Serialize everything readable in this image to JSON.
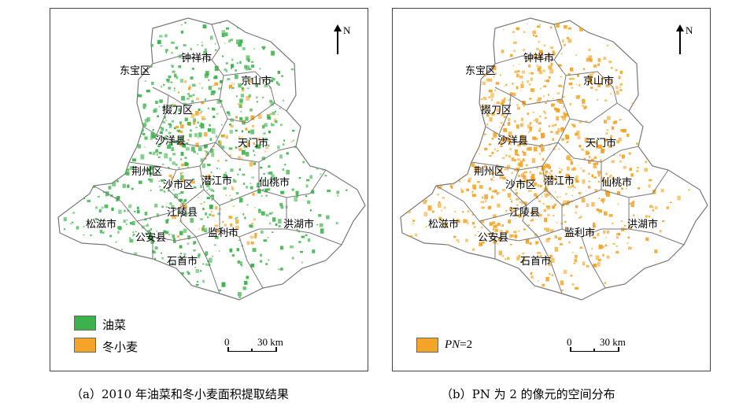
{
  "panel_a": {
    "cities": [
      "钟祥市",
      "东宝区",
      "京山市",
      "掇刀区",
      "天门市",
      "沙洋县",
      "荆州区",
      "潜江市",
      "仙桃市",
      "沙市区",
      "江陵县",
      "松滋市",
      "公安县",
      "监利市",
      "洪湖市",
      "石首市"
    ],
    "north": "N",
    "scale": {
      "zero": "0",
      "distance": "30 km"
    },
    "legend": [
      {
        "label": "油菜",
        "color": "#3cb34a"
      },
      {
        "label": "冬小麦",
        "color": "#f4a426"
      }
    ]
  },
  "panel_b": {
    "cities": [
      "钟祥市",
      "东宝区",
      "京山市",
      "掇刀区",
      "天门市",
      "沙洋县",
      "荆州区",
      "潜江市",
      "仙桃市",
      "沙市区",
      "江陵县",
      "松滋市",
      "公安县",
      "监利市",
      "洪湖市",
      "石首市"
    ],
    "north": "N",
    "scale": {
      "zero": "0",
      "distance": "30 km"
    },
    "legend": [
      {
        "label_italic": "PN",
        "label_rest": "=2",
        "color": "#f4a426"
      }
    ]
  },
  "captions": {
    "a": "（a）2010 年油菜和冬小麦面积提取结果",
    "b": "（b）PN 为 2 的像元的空间分布"
  },
  "colors": {
    "rapeseed": "#3cb34a",
    "wheat": "#f4a426",
    "boundary": "#777777"
  }
}
